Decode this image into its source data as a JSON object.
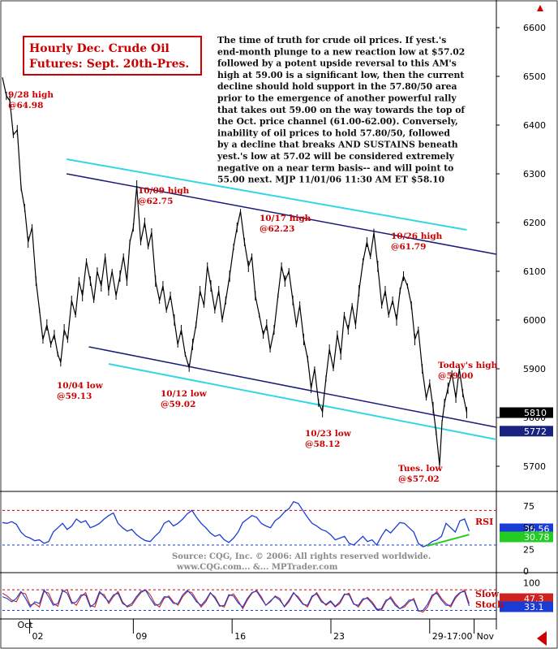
{
  "title_box": {
    "line1": "Hourly Dec. Crude Oil",
    "line2": "Futures: Sept. 20th-Pres."
  },
  "commentary": [
    "The time of truth for crude oil prices. If yest.'s",
    "end-month plunge to a new reaction low at $57.02",
    "followed by a potent upside reversal to this AM's",
    "high at 59.00 is a significant low, then the current",
    "decline should hold support in the 57.80/50 area",
    "prior to the emergence of another powerful rally",
    "that takes out 59.00 on the way towards the top of",
    "the Oct. price channel (61.00-62.00). Conversely,",
    "inability of oil prices to hold 57.80/50, followed",
    "by a decline that breaks AND SUSTAINS beneath",
    "yest.'s low at 57.02 will be considered extremely",
    "negative on a near term basis-- and will point to",
    "55.00 next. MJP  11/01/06  11:30 AM ET $58.10"
  ],
  "source": {
    "line1": "Source: CQG, Inc. © 2006: All rights reserved worldwide.",
    "line2": "www.CQG.com... &... MPTrader.com"
  },
  "colors": {
    "accent": "#cc0000",
    "price": "#000000",
    "channel_dark": "#1a1a7a",
    "channel_light": "#33d6e6",
    "rsi": "#1a3cd6",
    "rsi_trend": "#22cc22",
    "stoch_slow": "#cc2222",
    "stoch_fast": "#1a3cd6",
    "badge_price": "#000000",
    "badge_channel": "#1a2280",
    "badge_rsi1": "#1a3cd6",
    "badge_rsi2": "#22cc22",
    "badge_stoch1": "#cc2222",
    "badge_stoch2": "#1a3cd6"
  },
  "chart_data": [
    {
      "type": "line",
      "name": "price",
      "ylim": [
        56.5,
        66.5
      ],
      "yticks": [
        57.0,
        58.0,
        59.0,
        60.0,
        61.0,
        62.0,
        63.0,
        64.0,
        65.0,
        66.0
      ],
      "ytick_labels": [
        "5700",
        "5800",
        "5900",
        "6000",
        "6100",
        "6200",
        "6300",
        "6400",
        "6500",
        "6600"
      ],
      "xticks": [
        {
          "label": "02",
          "pos": 0.055
        },
        {
          "label": "09",
          "pos": 0.265
        },
        {
          "label": "16",
          "pos": 0.465
        },
        {
          "label": "23",
          "pos": 0.665
        },
        {
          "label": "29-17:00",
          "pos": 0.865
        },
        {
          "label": "Nov",
          "pos": 0.955
        }
      ],
      "month_labels": [
        {
          "label": "Oct",
          "pos": 0.055
        }
      ],
      "points": [
        [
          0.0,
          64.98
        ],
        [
          0.008,
          64.6
        ],
        [
          0.015,
          64.5
        ],
        [
          0.022,
          63.8
        ],
        [
          0.03,
          63.9
        ],
        [
          0.038,
          62.7
        ],
        [
          0.045,
          62.3
        ],
        [
          0.052,
          61.6
        ],
        [
          0.06,
          61.9
        ],
        [
          0.068,
          60.8
        ],
        [
          0.075,
          60.2
        ],
        [
          0.082,
          59.6
        ],
        [
          0.09,
          59.9
        ],
        [
          0.098,
          59.5
        ],
        [
          0.105,
          59.7
        ],
        [
          0.112,
          59.3
        ],
        [
          0.118,
          59.13
        ],
        [
          0.125,
          59.8
        ],
        [
          0.132,
          59.6
        ],
        [
          0.14,
          60.4
        ],
        [
          0.148,
          60.1
        ],
        [
          0.155,
          60.8
        ],
        [
          0.162,
          60.5
        ],
        [
          0.17,
          61.2
        ],
        [
          0.178,
          60.8
        ],
        [
          0.185,
          60.4
        ],
        [
          0.192,
          61.0
        ],
        [
          0.2,
          60.7
        ],
        [
          0.208,
          61.3
        ],
        [
          0.215,
          60.6
        ],
        [
          0.222,
          61.0
        ],
        [
          0.23,
          60.5
        ],
        [
          0.238,
          60.9
        ],
        [
          0.245,
          61.3
        ],
        [
          0.252,
          60.8
        ],
        [
          0.258,
          61.6
        ],
        [
          0.265,
          61.9
        ],
        [
          0.272,
          62.75
        ],
        [
          0.28,
          61.6
        ],
        [
          0.288,
          62.0
        ],
        [
          0.295,
          61.5
        ],
        [
          0.302,
          61.8
        ],
        [
          0.31,
          60.8
        ],
        [
          0.318,
          60.4
        ],
        [
          0.325,
          60.7
        ],
        [
          0.332,
          60.2
        ],
        [
          0.34,
          60.5
        ],
        [
          0.348,
          60.0
        ],
        [
          0.355,
          59.5
        ],
        [
          0.362,
          59.8
        ],
        [
          0.37,
          59.3
        ],
        [
          0.378,
          59.02
        ],
        [
          0.385,
          59.5
        ],
        [
          0.392,
          59.9
        ],
        [
          0.4,
          60.6
        ],
        [
          0.408,
          60.3
        ],
        [
          0.415,
          61.1
        ],
        [
          0.422,
          60.7
        ],
        [
          0.43,
          60.2
        ],
        [
          0.438,
          60.6
        ],
        [
          0.445,
          60.0
        ],
        [
          0.452,
          60.4
        ],
        [
          0.46,
          60.9
        ],
        [
          0.468,
          61.5
        ],
        [
          0.475,
          61.9
        ],
        [
          0.482,
          62.23
        ],
        [
          0.49,
          61.6
        ],
        [
          0.498,
          61.1
        ],
        [
          0.505,
          61.3
        ],
        [
          0.512,
          60.5
        ],
        [
          0.52,
          60.1
        ],
        [
          0.528,
          59.7
        ],
        [
          0.535,
          59.9
        ],
        [
          0.542,
          59.4
        ],
        [
          0.55,
          59.8
        ],
        [
          0.558,
          60.5
        ],
        [
          0.565,
          61.1
        ],
        [
          0.572,
          60.8
        ],
        [
          0.58,
          61.0
        ],
        [
          0.588,
          60.4
        ],
        [
          0.595,
          59.9
        ],
        [
          0.602,
          60.3
        ],
        [
          0.61,
          59.6
        ],
        [
          0.618,
          59.2
        ],
        [
          0.625,
          58.6
        ],
        [
          0.632,
          59.0
        ],
        [
          0.64,
          58.3
        ],
        [
          0.648,
          58.12
        ],
        [
          0.655,
          58.8
        ],
        [
          0.662,
          59.4
        ],
        [
          0.67,
          59.0
        ],
        [
          0.678,
          59.7
        ],
        [
          0.685,
          59.3
        ],
        [
          0.692,
          60.1
        ],
        [
          0.7,
          59.8
        ],
        [
          0.708,
          60.3
        ],
        [
          0.715,
          59.9
        ],
        [
          0.722,
          60.6
        ],
        [
          0.73,
          61.2
        ],
        [
          0.738,
          61.6
        ],
        [
          0.745,
          61.3
        ],
        [
          0.752,
          61.79
        ],
        [
          0.76,
          61.1
        ],
        [
          0.768,
          60.3
        ],
        [
          0.775,
          60.6
        ],
        [
          0.782,
          60.1
        ],
        [
          0.79,
          60.4
        ],
        [
          0.798,
          60.0
        ],
        [
          0.805,
          60.6
        ],
        [
          0.812,
          60.9
        ],
        [
          0.82,
          60.7
        ],
        [
          0.828,
          60.3
        ],
        [
          0.835,
          59.6
        ],
        [
          0.842,
          59.8
        ],
        [
          0.85,
          59.0
        ],
        [
          0.858,
          58.4
        ],
        [
          0.865,
          58.7
        ],
        [
          0.872,
          58.2
        ],
        [
          0.878,
          57.7
        ],
        [
          0.885,
          57.02
        ],
        [
          0.89,
          57.9
        ],
        [
          0.895,
          58.3
        ],
        [
          0.902,
          58.6
        ],
        [
          0.91,
          58.9
        ],
        [
          0.918,
          58.4
        ],
        [
          0.925,
          59.0
        ],
        [
          0.932,
          58.5
        ],
        [
          0.94,
          58.1
        ]
      ],
      "annotations": [
        {
          "text": "9/28 high",
          "value": "@64.98"
        },
        {
          "text": "10/04 low",
          "value": "@59.13"
        },
        {
          "text": "10/09 high",
          "value": "@62.75"
        },
        {
          "text": "10/12 low",
          "value": "@59.02"
        },
        {
          "text": "10/17 high",
          "value": "@62.23"
        },
        {
          "text": "10/23 low",
          "value": "@58.12"
        },
        {
          "text": "10/26 high",
          "value": "@61.79"
        },
        {
          "text": "Today's high",
          "value": "@59.00"
        },
        {
          "text": "Tues. low",
          "value": "@$57.02"
        }
      ],
      "channel": {
        "upper_dark": [
          [
            0.13,
            63.0
          ],
          [
            1.0,
            61.35
          ]
        ],
        "upper_light": [
          [
            0.13,
            63.3
          ],
          [
            0.94,
            61.85
          ]
        ],
        "lower_dark": [
          [
            0.175,
            59.45
          ],
          [
            1.0,
            57.8
          ]
        ],
        "lower_light": [
          [
            0.215,
            59.1
          ],
          [
            1.0,
            57.55
          ]
        ]
      },
      "badges": [
        {
          "label": "5810",
          "value": 58.1,
          "color_key": "badge_price"
        },
        {
          "label": "5772",
          "value": 57.72,
          "color_key": "badge_channel"
        }
      ]
    },
    {
      "type": "line",
      "name": "RSI",
      "label": "RSI",
      "ylim": [
        0,
        90
      ],
      "yticks": [
        0,
        25,
        50,
        75
      ],
      "ytick_labels": [
        "0",
        "25",
        "50",
        "75"
      ],
      "guides": [
        30,
        70
      ],
      "values": [
        56,
        55,
        57,
        54,
        45,
        40,
        38,
        35,
        36,
        32,
        34,
        45,
        50,
        55,
        48,
        52,
        60,
        56,
        58,
        50,
        52,
        55,
        60,
        64,
        67,
        55,
        50,
        46,
        48,
        42,
        38,
        35,
        34,
        40,
        45,
        55,
        58,
        52,
        55,
        60,
        66,
        70,
        62,
        55,
        50,
        44,
        40,
        42,
        36,
        33,
        38,
        45,
        56,
        60,
        64,
        62,
        55,
        52,
        50,
        58,
        62,
        68,
        72,
        80,
        78,
        70,
        62,
        55,
        52,
        48,
        46,
        42,
        36,
        38,
        40,
        32,
        30,
        35,
        40,
        34,
        36,
        30,
        40,
        48,
        44,
        50,
        56,
        55,
        50,
        45,
        32,
        28,
        30,
        34,
        36,
        40,
        55,
        50,
        45,
        58,
        60,
        46
      ],
      "trendline": [
        [
          0.86,
          29
        ],
        [
          0.945,
          42
        ]
      ],
      "badges": [
        {
          "label": "36.56",
          "value": 36.56,
          "color_key": "badge_rsi1"
        },
        {
          "label": "30.78",
          "value": 30.78,
          "color_key": "badge_rsi2"
        }
      ]
    },
    {
      "type": "line",
      "name": "Stochastic",
      "label": "Slow",
      "label2": "Stoch",
      "ylim": [
        0,
        125
      ],
      "yticks": [
        100
      ],
      "ytick_labels": [
        "100"
      ],
      "guides": [
        80,
        20
      ],
      "series": [
        {
          "name": "Slow",
          "values": [
            70,
            62,
            50,
            45,
            72,
            68,
            35,
            40,
            30,
            75,
            70,
            40,
            32,
            75,
            80,
            45,
            35,
            60,
            72,
            35,
            30,
            70,
            66,
            40,
            60,
            75,
            45,
            30,
            35,
            55,
            72,
            80,
            65,
            40,
            30,
            55,
            62,
            45,
            35,
            60,
            75,
            72,
            50,
            30,
            45,
            70,
            60,
            35,
            30,
            62,
            68,
            48,
            25,
            50,
            70,
            78,
            60,
            35,
            45,
            62,
            55,
            30,
            45,
            70,
            60,
            40,
            30,
            58,
            72,
            50,
            35,
            45,
            30,
            40,
            65,
            70,
            40,
            30,
            50,
            58,
            45,
            25,
            20,
            45,
            60,
            40,
            25,
            30,
            45,
            55,
            20,
            15,
            30,
            60,
            75,
            55,
            40,
            30,
            55,
            70,
            80,
            40
          ]
        },
        {
          "name": "Stoch",
          "values": [
            60,
            55,
            45,
            55,
            75,
            55,
            30,
            45,
            40,
            80,
            60,
            35,
            40,
            78,
            70,
            40,
            45,
            65,
            65,
            30,
            40,
            75,
            60,
            45,
            65,
            70,
            40,
            32,
            40,
            60,
            76,
            78,
            55,
            35,
            38,
            60,
            58,
            40,
            40,
            65,
            78,
            65,
            45,
            35,
            50,
            72,
            55,
            32,
            35,
            66,
            62,
            42,
            30,
            55,
            72,
            76,
            55,
            35,
            48,
            60,
            50,
            32,
            50,
            72,
            55,
            38,
            35,
            62,
            68,
            45,
            38,
            48,
            32,
            45,
            68,
            65,
            38,
            35,
            54,
            55,
            40,
            22,
            25,
            50,
            55,
            35,
            25,
            35,
            50,
            50,
            18,
            20,
            38,
            65,
            70,
            50,
            35,
            35,
            60,
            72,
            75,
            33
          ]
        }
      ],
      "badges": [
        {
          "label": "47.3",
          "value": 47.3,
          "color_key": "badge_stoch1"
        },
        {
          "label": "33.1",
          "value": 33.1,
          "color_key": "badge_stoch2"
        }
      ]
    }
  ]
}
